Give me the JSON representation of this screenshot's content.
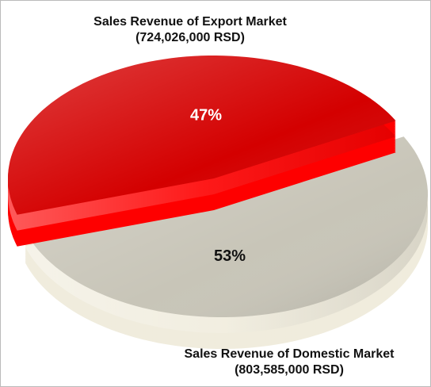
{
  "chart_data": {
    "type": "pie",
    "categories": [
      "Sales Revenue of Export Market",
      "Sales Revenue of Domestic Market"
    ],
    "annotations": [
      "(724,026,000 RSD)",
      "(803,585,000 RSD)"
    ],
    "values": [
      47,
      53
    ],
    "value_labels": [
      "47%",
      "53%"
    ],
    "colors": [
      "#d40000",
      "#c8c5b8"
    ]
  }
}
